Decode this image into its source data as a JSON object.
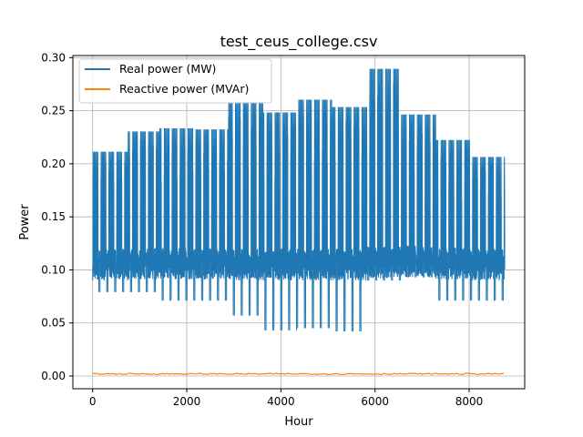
{
  "chart_data": {
    "type": "line",
    "title": "test_ceus_college.csv",
    "xlabel": "Hour",
    "ylabel": "Power",
    "xlim": [
      -420,
      9180
    ],
    "ylim": [
      -0.012,
      0.302
    ],
    "xticks": [
      0,
      2000,
      4000,
      6000,
      8000
    ],
    "xtick_labels": [
      "0",
      "2000",
      "4000",
      "6000",
      "8000"
    ],
    "yticks": [
      0.0,
      0.05,
      0.1,
      0.15,
      0.2,
      0.25,
      0.3
    ],
    "ytick_labels": [
      "0.00",
      "0.05",
      "0.10",
      "0.15",
      "0.20",
      "0.25",
      "0.30"
    ],
    "grid": true,
    "legend_position": "top-left",
    "hours": 8760,
    "series": [
      {
        "name": "Real power (MW)",
        "color": "#1f77b4",
        "monthly_peak": [
          0.211,
          0.23,
          0.233,
          0.232,
          0.258,
          0.248,
          0.26,
          0.253,
          0.289,
          0.246,
          0.222,
          0.206
        ],
        "monthly_weekend_low": [
          0.079,
          0.079,
          0.071,
          0.071,
          0.057,
          0.043,
          0.045,
          0.042,
          0.09,
          0.093,
          0.071,
          0.071
        ],
        "monthly_night_base": [
          0.09,
          0.091,
          0.091,
          0.091,
          0.09,
          0.09,
          0.09,
          0.09,
          0.092,
          0.093,
          0.091,
          0.09
        ]
      },
      {
        "name": "Reactive power (MVAr)",
        "color": "#ff7f0e",
        "approx_value": 0.002
      }
    ]
  }
}
